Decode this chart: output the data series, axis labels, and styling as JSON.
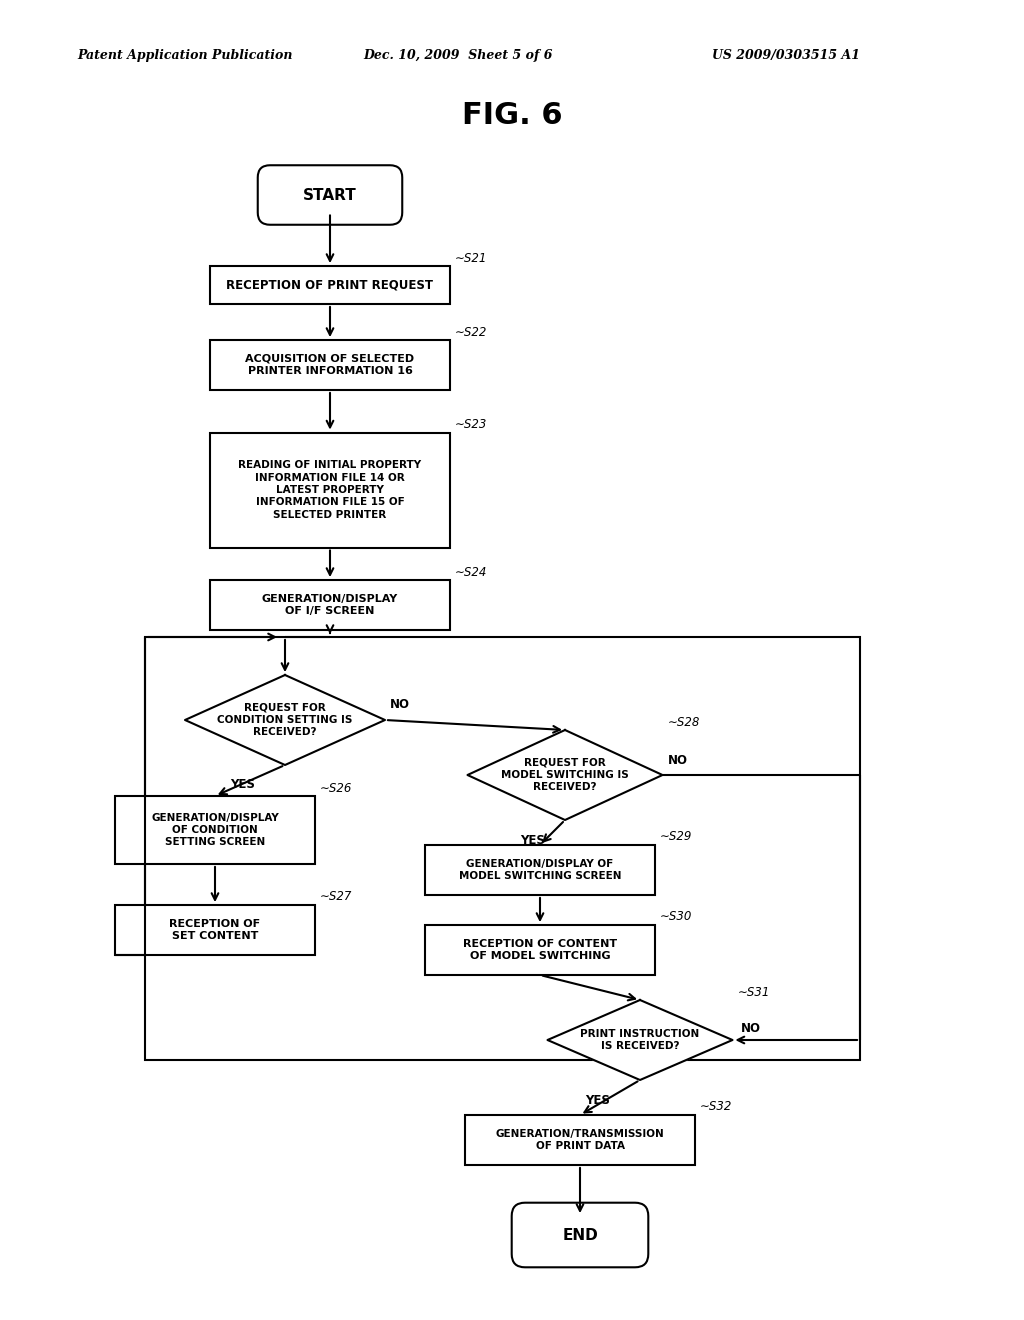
{
  "title": "FIG. 6",
  "header_left": "Patent Application Publication",
  "header_mid": "Dec. 10, 2009  Sheet 5 of 6",
  "header_right": "US 2009/0303515 A1",
  "bg_color": "#ffffff",
  "text_color": "#000000",
  "figsize": [
    10.24,
    13.2
  ],
  "dpi": 100
}
